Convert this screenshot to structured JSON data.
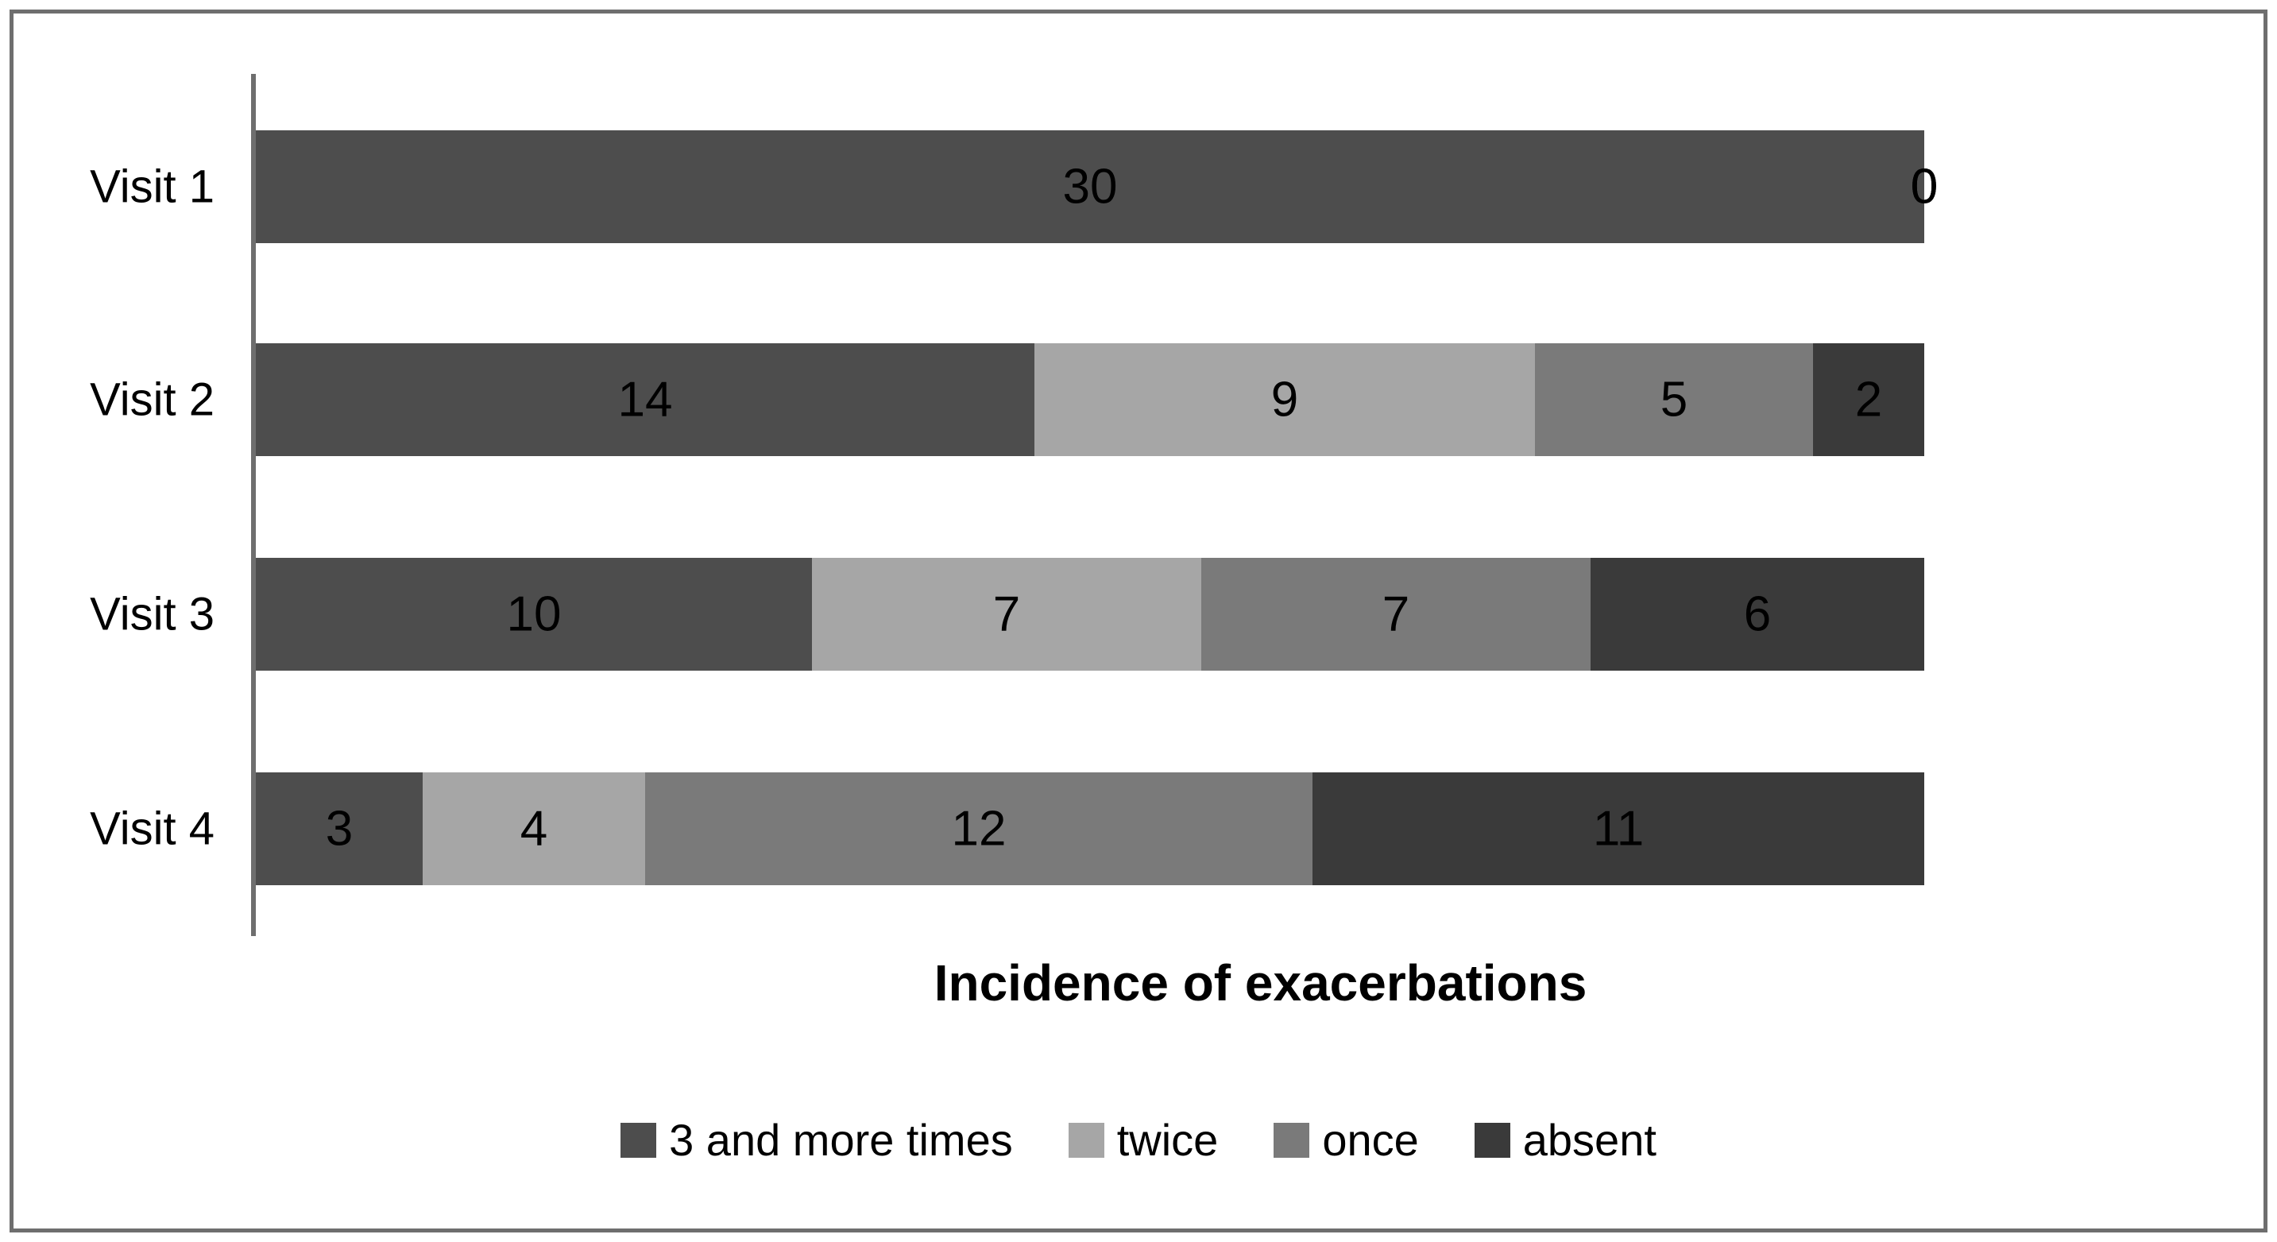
{
  "chart_data": {
    "type": "bar",
    "orientation": "horizontal",
    "stacked": true,
    "title": "Incidence of exacerbations",
    "xlabel": "Incidence of exacerbations",
    "ylabel": "",
    "xlim": [
      0,
      30
    ],
    "grid": false,
    "legend_position": "bottom",
    "data_labels": true,
    "label_color": "#000000",
    "axis_color": "#6e6e6e",
    "frame_color": "#6e6e6e",
    "categories": [
      "Visit 1",
      "Visit 2",
      "Visit 3",
      "Visit 4"
    ],
    "series": [
      {
        "name": "3 and more times",
        "color": "#4d4d4d",
        "values": [
          30,
          14,
          10,
          3
        ]
      },
      {
        "name": "twice",
        "color": "#a6a6a6",
        "values": [
          0,
          9,
          7,
          4
        ]
      },
      {
        "name": "once",
        "color": "#7a7a7a",
        "values": [
          0,
          5,
          7,
          12
        ]
      },
      {
        "name": "absent",
        "color": "#3a3a3a",
        "values": [
          0,
          2,
          6,
          11
        ]
      }
    ],
    "category_totals": [
      30,
      30,
      30,
      30
    ]
  }
}
